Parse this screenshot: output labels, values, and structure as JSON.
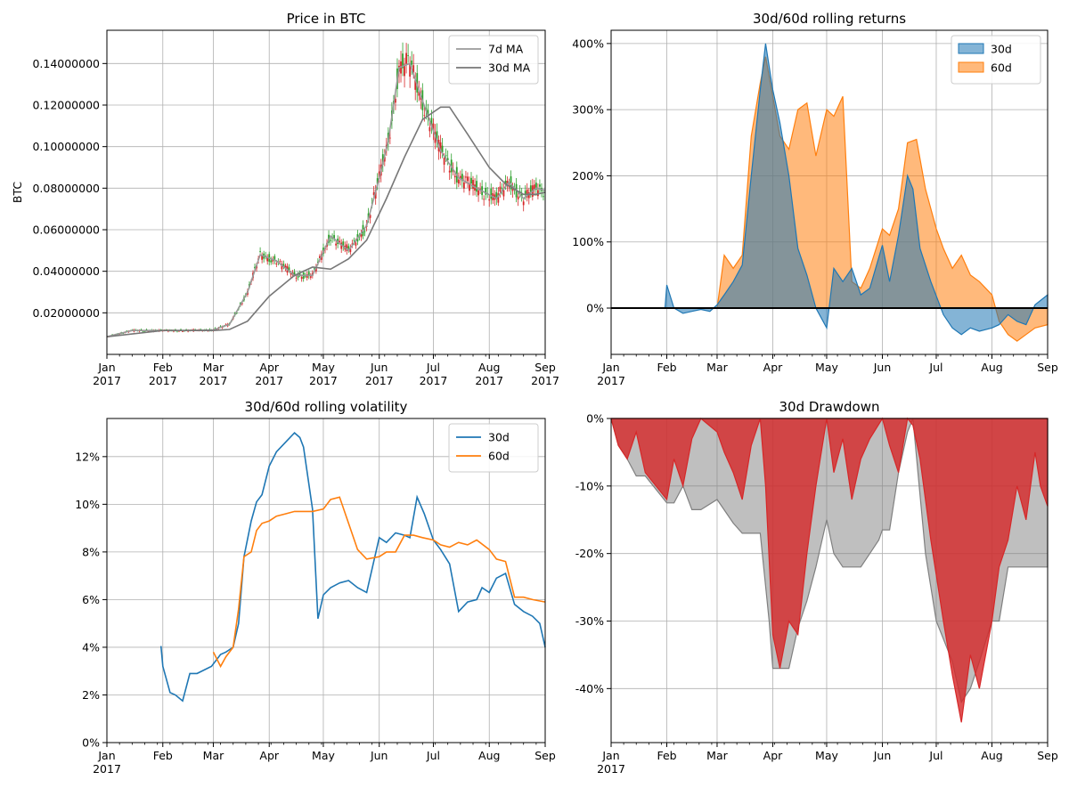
{
  "chart_data": [
    {
      "type": "candlestick",
      "title": "Price in BTC",
      "ylabel": "BTC",
      "xlabel": "",
      "ylim": [
        0.0,
        0.156
      ],
      "xlim": [
        "2017-01-01",
        "2017-09-01"
      ],
      "x_ticks": [
        [
          "Jan",
          "2017"
        ],
        [
          "Feb",
          "2017"
        ],
        [
          "Mar",
          "2017"
        ],
        [
          "Apr",
          "2017"
        ],
        [
          "May",
          "2017"
        ],
        [
          "Jun",
          "2017"
        ],
        [
          "Jul",
          "2017"
        ],
        [
          "Aug",
          "2017"
        ],
        [
          "Sep",
          "2017"
        ]
      ],
      "y_ticks": [
        "0.02000000",
        "0.04000000",
        "0.06000000",
        "0.08000000",
        "0.10000000",
        "0.12000000",
        "0.14000000"
      ],
      "grid": true,
      "legend_position": "top-right",
      "series": [
        {
          "name": "7d MA",
          "color": "#999999",
          "x": [
            "2017-01-01",
            "2017-01-15",
            "2017-02-01",
            "2017-02-15",
            "2017-03-01",
            "2017-03-10",
            "2017-03-20",
            "2017-03-27",
            "2017-04-05",
            "2017-04-15",
            "2017-04-25",
            "2017-05-05",
            "2017-05-15",
            "2017-05-25",
            "2017-06-01",
            "2017-06-06",
            "2017-06-12",
            "2017-06-18",
            "2017-06-25",
            "2017-07-05",
            "2017-07-15",
            "2017-07-25",
            "2017-08-05",
            "2017-08-12",
            "2017-08-20",
            "2017-08-27",
            "2017-09-01"
          ],
          "values": [
            0.0085,
            0.0115,
            0.0115,
            0.0115,
            0.0118,
            0.0145,
            0.03,
            0.048,
            0.045,
            0.038,
            0.038,
            0.057,
            0.05,
            0.062,
            0.085,
            0.103,
            0.138,
            0.14,
            0.122,
            0.098,
            0.085,
            0.08,
            0.075,
            0.083,
            0.075,
            0.08,
            0.079
          ]
        },
        {
          "name": "30d MA",
          "color": "#777777",
          "x": [
            "2017-01-01",
            "2017-02-01",
            "2017-03-01",
            "2017-03-10",
            "2017-03-20",
            "2017-04-01",
            "2017-04-15",
            "2017-04-25",
            "2017-05-05",
            "2017-05-15",
            "2017-05-25",
            "2017-06-05",
            "2017-06-15",
            "2017-06-25",
            "2017-07-05",
            "2017-07-10",
            "2017-07-20",
            "2017-08-01",
            "2017-08-10",
            "2017-08-20",
            "2017-08-27",
            "2017-09-01"
          ],
          "values": [
            0.0085,
            0.0115,
            0.0115,
            0.012,
            0.016,
            0.028,
            0.038,
            0.042,
            0.041,
            0.046,
            0.055,
            0.075,
            0.095,
            0.113,
            0.119,
            0.119,
            0.106,
            0.09,
            0.082,
            0.077,
            0.077,
            0.078
          ]
        }
      ]
    },
    {
      "type": "area",
      "title": "30d/60d rolling returns",
      "xlim": [
        "2017-01-01",
        "2017-09-01"
      ],
      "ylim": [
        -70,
        420
      ],
      "x_ticks": [
        [
          "Jan",
          "2017"
        ],
        [
          "Feb",
          ""
        ],
        [
          "Mar",
          ""
        ],
        [
          "Apr",
          ""
        ],
        [
          "May",
          ""
        ],
        [
          "Jun",
          ""
        ],
        [
          "Jul",
          ""
        ],
        [
          "Aug",
          ""
        ],
        [
          "Sep",
          ""
        ]
      ],
      "y_ticks": [
        "0%",
        "100%",
        "200%",
        "300%",
        "400%"
      ],
      "grid": true,
      "legend_position": "top-right",
      "series": [
        {
          "name": "30d",
          "color": "#1f77b4",
          "x": [
            "2017-01-01",
            "2017-01-31",
            "2017-02-01",
            "2017-02-05",
            "2017-02-10",
            "2017-02-15",
            "2017-02-20",
            "2017-02-25",
            "2017-03-01",
            "2017-03-05",
            "2017-03-10",
            "2017-03-15",
            "2017-03-20",
            "2017-03-25",
            "2017-03-28",
            "2017-04-01",
            "2017-04-05",
            "2017-04-10",
            "2017-04-15",
            "2017-04-20",
            "2017-04-25",
            "2017-05-01",
            "2017-05-05",
            "2017-05-10",
            "2017-05-15",
            "2017-05-20",
            "2017-05-25",
            "2017-06-01",
            "2017-06-05",
            "2017-06-10",
            "2017-06-15",
            "2017-06-18",
            "2017-06-22",
            "2017-06-28",
            "2017-07-05",
            "2017-07-10",
            "2017-07-15",
            "2017-07-20",
            "2017-07-25",
            "2017-08-01",
            "2017-08-05",
            "2017-08-10",
            "2017-08-15",
            "2017-08-20",
            "2017-08-25",
            "2017-09-01"
          ],
          "values": [
            0,
            0,
            35,
            0,
            -8,
            -5,
            -2,
            -5,
            5,
            20,
            40,
            65,
            200,
            330,
            400,
            330,
            280,
            200,
            90,
            50,
            0,
            -30,
            60,
            40,
            60,
            20,
            30,
            95,
            40,
            110,
            200,
            180,
            90,
            40,
            -10,
            -30,
            -40,
            -30,
            -35,
            -30,
            -25,
            -10,
            -20,
            -25,
            5,
            20
          ]
        },
        {
          "name": "60d",
          "color": "#ff7f0e",
          "x": [
            "2017-01-01",
            "2017-03-01",
            "2017-03-05",
            "2017-03-10",
            "2017-03-15",
            "2017-03-20",
            "2017-03-25",
            "2017-03-28",
            "2017-04-01",
            "2017-04-05",
            "2017-04-10",
            "2017-04-15",
            "2017-04-20",
            "2017-04-25",
            "2017-05-01",
            "2017-05-05",
            "2017-05-10",
            "2017-05-15",
            "2017-05-20",
            "2017-05-25",
            "2017-06-01",
            "2017-06-05",
            "2017-06-10",
            "2017-06-15",
            "2017-06-20",
            "2017-06-25",
            "2017-07-01",
            "2017-07-05",
            "2017-07-10",
            "2017-07-15",
            "2017-07-20",
            "2017-07-25",
            "2017-08-01",
            "2017-08-05",
            "2017-08-10",
            "2017-08-15",
            "2017-08-20",
            "2017-08-25",
            "2017-09-01"
          ],
          "values": [
            0,
            0,
            80,
            60,
            80,
            260,
            340,
            380,
            320,
            260,
            240,
            300,
            310,
            230,
            300,
            290,
            320,
            40,
            30,
            60,
            120,
            110,
            150,
            250,
            255,
            180,
            120,
            90,
            60,
            80,
            50,
            40,
            20,
            -20,
            -40,
            -50,
            -40,
            -30,
            -25
          ]
        }
      ]
    },
    {
      "type": "line",
      "title": "30d/60d rolling volatility",
      "xlim": [
        "2017-01-01",
        "2017-09-01"
      ],
      "ylim": [
        0,
        13.6
      ],
      "x_ticks": [
        [
          "Jan",
          "2017"
        ],
        [
          "Feb",
          ""
        ],
        [
          "Mar",
          ""
        ],
        [
          "Apr",
          ""
        ],
        [
          "May",
          ""
        ],
        [
          "Jun",
          ""
        ],
        [
          "Jul",
          ""
        ],
        [
          "Aug",
          ""
        ],
        [
          "Sep",
          ""
        ]
      ],
      "y_ticks": [
        "0%",
        "2%",
        "4%",
        "6%",
        "8%",
        "10%",
        "12%"
      ],
      "grid": true,
      "legend_position": "top-right",
      "series": [
        {
          "name": "30d",
          "color": "#1f77b4",
          "x": [
            "2017-01-31",
            "2017-02-01",
            "2017-02-05",
            "2017-02-08",
            "2017-02-12",
            "2017-02-16",
            "2017-02-20",
            "2017-02-28",
            "2017-03-05",
            "2017-03-08",
            "2017-03-12",
            "2017-03-15",
            "2017-03-18",
            "2017-03-22",
            "2017-03-25",
            "2017-03-28",
            "2017-04-01",
            "2017-04-05",
            "2017-04-10",
            "2017-04-15",
            "2017-04-18",
            "2017-04-20",
            "2017-04-25",
            "2017-04-28",
            "2017-05-01",
            "2017-05-05",
            "2017-05-10",
            "2017-05-15",
            "2017-05-20",
            "2017-05-25",
            "2017-06-01",
            "2017-06-05",
            "2017-06-10",
            "2017-06-15",
            "2017-06-18",
            "2017-06-22",
            "2017-06-26",
            "2017-07-01",
            "2017-07-05",
            "2017-07-10",
            "2017-07-15",
            "2017-07-20",
            "2017-07-25",
            "2017-07-28",
            "2017-08-01",
            "2017-08-05",
            "2017-08-10",
            "2017-08-15",
            "2017-08-20",
            "2017-08-25",
            "2017-08-29",
            "2017-09-01"
          ],
          "values": [
            4.05,
            3.2,
            2.1,
            2.0,
            1.75,
            2.9,
            2.9,
            3.2,
            3.7,
            3.8,
            4.0,
            5.0,
            7.8,
            9.3,
            10.1,
            10.4,
            11.6,
            12.2,
            12.6,
            13.0,
            12.8,
            12.4,
            9.8,
            5.2,
            6.2,
            6.5,
            6.7,
            6.8,
            6.5,
            6.3,
            8.6,
            8.4,
            8.8,
            8.7,
            8.6,
            10.3,
            9.6,
            8.5,
            8.1,
            7.5,
            5.5,
            5.9,
            6.0,
            6.5,
            6.3,
            6.9,
            7.1,
            5.8,
            5.5,
            5.3,
            5.0,
            4.0
          ]
        },
        {
          "name": "60d",
          "color": "#ff7f0e",
          "x": [
            "2017-03-01",
            "2017-03-05",
            "2017-03-08",
            "2017-03-12",
            "2017-03-15",
            "2017-03-18",
            "2017-03-22",
            "2017-03-25",
            "2017-03-28",
            "2017-04-01",
            "2017-04-05",
            "2017-04-10",
            "2017-04-15",
            "2017-04-20",
            "2017-04-25",
            "2017-05-01",
            "2017-05-05",
            "2017-05-10",
            "2017-05-15",
            "2017-05-20",
            "2017-05-25",
            "2017-06-01",
            "2017-06-05",
            "2017-06-10",
            "2017-06-15",
            "2017-06-20",
            "2017-06-25",
            "2017-07-01",
            "2017-07-05",
            "2017-07-10",
            "2017-07-15",
            "2017-07-20",
            "2017-07-25",
            "2017-08-01",
            "2017-08-05",
            "2017-08-10",
            "2017-08-15",
            "2017-08-20",
            "2017-08-25",
            "2017-09-01"
          ],
          "values": [
            3.8,
            3.2,
            3.6,
            4.0,
            5.6,
            7.8,
            8.0,
            8.9,
            9.2,
            9.3,
            9.5,
            9.6,
            9.7,
            9.7,
            9.7,
            9.8,
            10.2,
            10.3,
            9.2,
            8.1,
            7.7,
            7.8,
            8.0,
            8.0,
            8.7,
            8.7,
            8.6,
            8.5,
            8.3,
            8.2,
            8.4,
            8.3,
            8.5,
            8.1,
            7.7,
            7.6,
            6.1,
            6.1,
            6.0,
            5.9
          ]
        }
      ]
    },
    {
      "type": "area",
      "title": "30d Drawdown",
      "xlim": [
        "2017-01-01",
        "2017-09-01"
      ],
      "ylim": [
        -48,
        0
      ],
      "x_ticks": [
        [
          "Jan",
          "2017"
        ],
        [
          "Feb",
          ""
        ],
        [
          "Mar",
          ""
        ],
        [
          "Apr",
          ""
        ],
        [
          "May",
          ""
        ],
        [
          "Jun",
          ""
        ],
        [
          "Jul",
          ""
        ],
        [
          "Aug",
          ""
        ],
        [
          "Sep",
          ""
        ]
      ],
      "y_ticks": [
        "-40%",
        "-30%",
        "-20%",
        "-10%",
        "0%"
      ],
      "grid": true,
      "series": [
        {
          "name": "",
          "color": "#808080",
          "x": [
            "2017-01-01",
            "2017-01-05",
            "2017-01-10",
            "2017-01-15",
            "2017-01-20",
            "2017-02-01",
            "2017-02-05",
            "2017-02-10",
            "2017-02-15",
            "2017-02-20",
            "2017-03-01",
            "2017-03-10",
            "2017-03-15",
            "2017-03-25",
            "2017-03-30",
            "2017-04-01",
            "2017-04-10",
            "2017-04-15",
            "2017-04-20",
            "2017-04-25",
            "2017-05-01",
            "2017-05-05",
            "2017-05-10",
            "2017-05-15",
            "2017-05-20",
            "2017-05-25",
            "2017-05-30",
            "2017-06-01",
            "2017-06-05",
            "2017-06-10",
            "2017-06-15",
            "2017-06-18",
            "2017-06-25",
            "2017-07-01",
            "2017-07-10",
            "2017-07-15",
            "2017-07-20",
            "2017-07-25",
            "2017-08-01",
            "2017-08-05",
            "2017-08-10",
            "2017-08-15",
            "2017-08-20",
            "2017-08-25",
            "2017-09-01"
          ],
          "values": [
            0,
            -4,
            -6,
            -8.5,
            -8.5,
            -12.5,
            -12.5,
            -10,
            -13.5,
            -13.5,
            -12,
            -15.5,
            -17,
            -17,
            -30,
            -37,
            -37,
            -31,
            -27,
            -22,
            -15,
            -20,
            -22,
            -22,
            -22,
            -20,
            -18,
            -16.5,
            -16.5,
            -8,
            -2,
            0,
            -20,
            -30,
            -36,
            -42,
            -40,
            -36,
            -30,
            -30,
            -22,
            -22,
            -22,
            -22,
            -22
          ]
        },
        {
          "name": "",
          "color": "#d62728",
          "x": [
            "2017-01-01",
            "2017-01-05",
            "2017-01-10",
            "2017-01-15",
            "2017-01-20",
            "2017-02-01",
            "2017-02-05",
            "2017-02-10",
            "2017-02-15",
            "2017-02-20",
            "2017-03-01",
            "2017-03-05",
            "2017-03-10",
            "2017-03-15",
            "2017-03-20",
            "2017-03-25",
            "2017-03-28",
            "2017-04-01",
            "2017-04-05",
            "2017-04-10",
            "2017-04-15",
            "2017-04-20",
            "2017-04-25",
            "2017-05-01",
            "2017-05-05",
            "2017-05-10",
            "2017-05-15",
            "2017-05-20",
            "2017-05-25",
            "2017-06-01",
            "2017-06-05",
            "2017-06-10",
            "2017-06-15",
            "2017-06-18",
            "2017-06-22",
            "2017-06-28",
            "2017-07-05",
            "2017-07-10",
            "2017-07-15",
            "2017-07-20",
            "2017-07-25",
            "2017-08-01",
            "2017-08-05",
            "2017-08-10",
            "2017-08-15",
            "2017-08-20",
            "2017-08-25",
            "2017-08-28",
            "2017-09-01"
          ],
          "values": [
            0,
            -4,
            -6,
            -2,
            -8,
            -12,
            -6,
            -10,
            -3,
            0,
            -2,
            -5,
            -8,
            -12,
            -4,
            0,
            -10,
            -32,
            -37,
            -30,
            -32,
            -20,
            -10,
            0,
            -8,
            -3,
            -12,
            -6,
            -3,
            0,
            -4,
            -8,
            0,
            -1,
            -6,
            -18,
            -30,
            -38,
            -45,
            -35,
            -40,
            -30,
            -22,
            -18,
            -10,
            -15,
            -5,
            -10,
            -13
          ]
        }
      ]
    }
  ]
}
